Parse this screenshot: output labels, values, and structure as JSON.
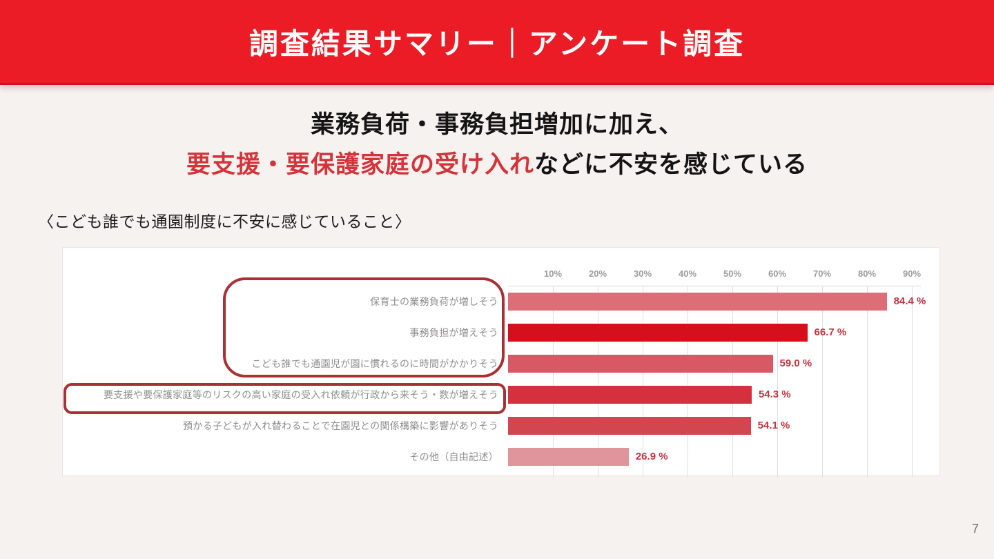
{
  "header": {
    "title": "調査結果サマリー｜アンケート調査"
  },
  "headline": {
    "line1": "業務負荷・事務負担増加に加え、",
    "line2_highlight": "要支援・要保護家庭の受け入れ",
    "line2_rest": "などに不安を感じている"
  },
  "caption": "〈こども誰でも通園制度に不安に感じていること〉",
  "chart_data": {
    "type": "bar",
    "orientation": "horizontal",
    "title": "こども誰でも通園制度に不安に感じていること",
    "categories": [
      "保育士の業務負荷が増しそう",
      "事務負担が増えそう",
      "こども誰でも通園児が園に慣れるのに時間がかかりそう",
      "要支援や要保護家庭等のリスクの高い家庭の受入れ依頼が行政から来そう・数が増えそう",
      "預かる子どもが入れ替わることで在園児との関係構築に影響がありそう",
      "その他（自由記述）"
    ],
    "values": [
      84.4,
      66.7,
      59.0,
      54.3,
      54.1,
      26.9
    ],
    "value_labels": [
      "84.4 %",
      "66.7 %",
      "59.0 %",
      "54.3 %",
      "54.1 %",
      "26.9 %"
    ],
    "bar_colors": [
      "#dd6e78",
      "#d60f1c",
      "#d75963",
      "#d5303d",
      "#d2464f",
      "#e0959c"
    ],
    "x_ticks": [
      "10%",
      "20%",
      "30%",
      "40%",
      "50%",
      "60%",
      "70%",
      "80%",
      "90%"
    ],
    "xlim": [
      0,
      92
    ],
    "grid": true,
    "legend": "none",
    "annotations": [
      {
        "name": "top3-highlight",
        "rows_highlighted": [
          0,
          1,
          2
        ]
      },
      {
        "name": "row4-highlight",
        "rows_highlighted": [
          3
        ]
      }
    ]
  },
  "colors": {
    "banner_red": "#ec1c26",
    "headline_red": "#d5333a",
    "value_label_red": "#c23340",
    "annotation_border_red": "#a93035",
    "category_label_gray": "#8f8c8c",
    "background": "#f6f2f0"
  },
  "page_number": "7"
}
